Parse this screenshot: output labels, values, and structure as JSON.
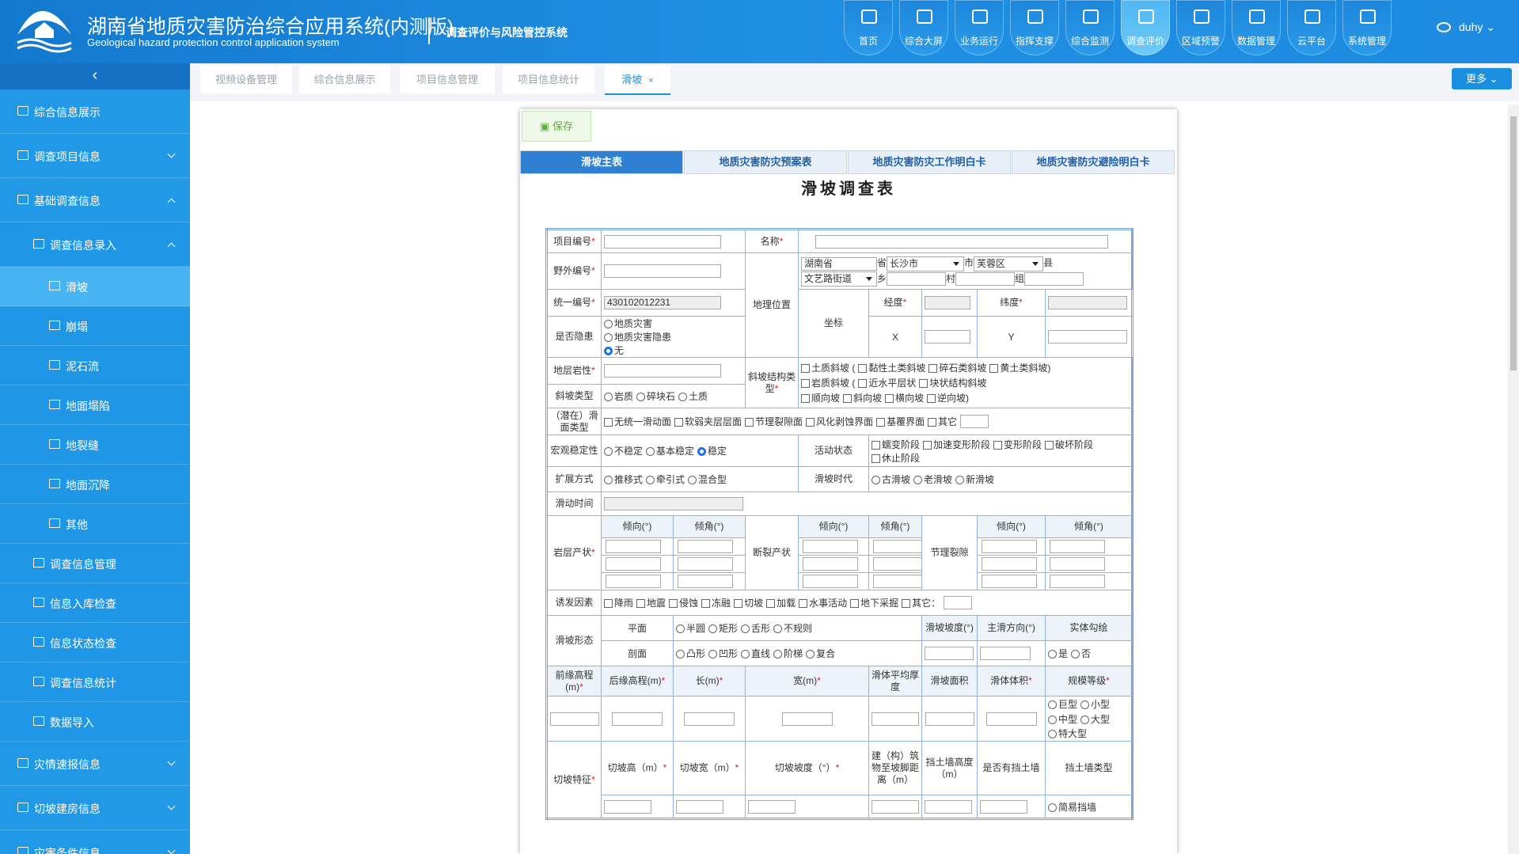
{
  "header": {
    "title": "湖南省地质灾害防治综合应用系统",
    "badge": "(内测版)",
    "subtitle": "Geological hazard protection control application system",
    "system": "调查评价与风险管控系统",
    "nav": [
      "首页",
      "综合大屏",
      "业务运行",
      "指挥支撑",
      "综合监测",
      "调查评价",
      "区域预警",
      "数据管理",
      "云平台",
      "系统管理"
    ],
    "user": "duhy"
  },
  "sidebar": [
    "综合信息展示",
    "调查项目信息",
    "基础调查信息",
    "调查信息录入",
    "滑坡",
    "崩塌",
    "泥石流",
    "地面塌陷",
    "地裂缝",
    "地面沉降",
    "其他",
    "调查信息管理",
    "信息入库检查",
    "信息状态检查",
    "调查信息统计",
    "数据导入",
    "灾情速报信息",
    "切坡建房信息",
    "灾害条件信息"
  ],
  "tabs": [
    "视频设备管理",
    "综合信息展示",
    "项目信息管理",
    "项目信息统计",
    "滑坡"
  ],
  "more": "更多",
  "form": {
    "save": "保存",
    "tabs": [
      "滑坡主表",
      "地质灾害防灾预案表",
      "地质灾害防灾工作明白卡",
      "地质灾害防灾避险明白卡"
    ],
    "title": "滑坡调查表",
    "rows": [
      [
        "项目编号*",
        "名称*"
      ],
      [
        "野外编号*",
        "地理位置",
        "湖南省",
        "省",
        "长沙市",
        "市",
        "芙蓉区",
        "县",
        "文艺路街道",
        "乡",
        "村",
        "组"
      ],
      [
        "统一编号*",
        "430102012231",
        "坐标",
        "经度*",
        "纬度*"
      ],
      [
        "是否隐患",
        "地质灾害",
        "地质灾害隐患",
        "无",
        "X",
        "Y"
      ],
      [
        "地层岩性*",
        "斜坡结构类型*",
        "土质斜坡 (",
        "黏性土类斜坡",
        "碎石类斜坡",
        "黄土类斜坡)",
        "岩质斜坡 (",
        "近水平层状",
        "块状结构斜坡",
        "顺向坡",
        "斜向坡",
        "横向坡",
        "逆向坡)"
      ],
      [
        "斜坡类型",
        "岩质",
        "碎块石",
        "土质"
      ],
      [
        "（潜在）滑面类型",
        "无统一滑动面",
        "软弱夹层层面",
        "节理裂隙面",
        "风化剥蚀界面",
        "基覆界面",
        "其它"
      ],
      [
        "宏观稳定性",
        "不稳定",
        "基本稳定",
        "稳定",
        "活动状态",
        "蠕变阶段",
        "加速变形阶段",
        "变形阶段",
        "破坏阶段",
        "休止阶段"
      ],
      [
        "扩展方式",
        "推移式",
        "牵引式",
        "混合型",
        "滑坡时代",
        "古滑坡",
        "老滑坡",
        "新滑坡"
      ],
      [
        "滑动时间"
      ],
      [
        "岩层产状*",
        "倾向(°)",
        "倾角(°)",
        "断裂产状",
        "倾向(°)",
        "倾角(°)",
        "节理裂隙",
        "倾向(°)",
        "倾角(°)"
      ],
      [
        "诱发因素",
        "降雨",
        "地震",
        "侵蚀",
        "冻融",
        "切坡",
        "加载",
        "水事活动",
        "地下采掘",
        "其它："
      ],
      [
        "滑坡形态",
        "平面",
        "半圆",
        "矩形",
        "舌形",
        "不规则",
        "滑坡坡度(°)",
        "主滑方向(°)",
        "实体勾绘"
      ],
      [
        "剖面",
        "凸形",
        "凹形",
        "直线",
        "阶梯",
        "复合",
        "是",
        "否"
      ],
      [
        "前缘高程(m)*",
        "后缘高程(m)*",
        "长(m)*",
        "宽(m)*",
        "滑体平均厚度",
        "滑坡面积",
        "滑体体积*",
        "规模等级*"
      ],
      [
        "巨型",
        "小型",
        "中型",
        "大型",
        "特大型"
      ],
      [
        "切坡特征*",
        "切坡高（m）*",
        "切坡宽（m）*",
        "切坡坡度（°）*",
        "建（构）筑物至坡脚距离（m）",
        "挡土墙高度（m）",
        "是否有挡土墙",
        "挡土墙类型"
      ],
      [
        "简易挡墙"
      ]
    ]
  }
}
